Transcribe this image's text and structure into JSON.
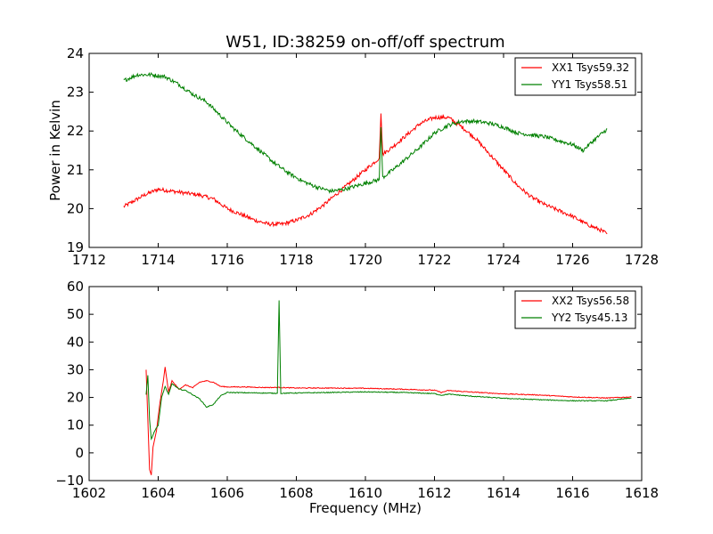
{
  "chart_data": [
    {
      "type": "line",
      "title": "W51, ID:38259 on-off/off spectrum",
      "xlabel": "",
      "ylabel": "Power in Kelvin",
      "xlim": [
        1712,
        1728
      ],
      "ylim": [
        19,
        24
      ],
      "xticks": [
        "1712",
        "1714",
        "1716",
        "1718",
        "1720",
        "1722",
        "1724",
        "1726",
        "1728"
      ],
      "yticks": [
        "19",
        "20",
        "21",
        "22",
        "23",
        "24"
      ],
      "legend_position": "top-right",
      "grid": false,
      "series": [
        {
          "name": "XX1 Tsys59.32",
          "color": "#ff0000",
          "x": [
            1713.0,
            1713.3,
            1713.6,
            1714.0,
            1714.4,
            1714.8,
            1715.2,
            1715.6,
            1716.0,
            1716.4,
            1716.8,
            1717.2,
            1717.6,
            1718.0,
            1718.4,
            1718.8,
            1719.2,
            1719.6,
            1720.0,
            1720.4,
            1720.45,
            1720.5,
            1720.8,
            1721.2,
            1721.6,
            1722.0,
            1722.4,
            1722.8,
            1723.2,
            1723.6,
            1724.0,
            1724.4,
            1724.8,
            1725.2,
            1725.6,
            1726.0,
            1726.4,
            1726.8,
            1727.0
          ],
          "y": [
            20.05,
            20.2,
            20.35,
            20.5,
            20.45,
            20.4,
            20.35,
            20.25,
            20.0,
            19.85,
            19.7,
            19.6,
            19.6,
            19.7,
            19.85,
            20.1,
            20.4,
            20.7,
            21.0,
            21.3,
            22.45,
            21.4,
            21.6,
            21.9,
            22.2,
            22.35,
            22.35,
            22.1,
            21.8,
            21.4,
            21.0,
            20.6,
            20.3,
            20.1,
            19.95,
            19.8,
            19.6,
            19.45,
            19.35
          ]
        },
        {
          "name": "YY1 Tsys58.51",
          "color": "#008000",
          "x": [
            1713.0,
            1713.4,
            1713.8,
            1714.2,
            1714.6,
            1715.0,
            1715.4,
            1715.8,
            1716.2,
            1716.6,
            1717.0,
            1717.4,
            1717.8,
            1718.2,
            1718.6,
            1719.0,
            1719.4,
            1719.8,
            1720.2,
            1720.4,
            1720.45,
            1720.5,
            1720.8,
            1721.2,
            1721.6,
            1722.0,
            1722.4,
            1722.8,
            1723.2,
            1723.6,
            1724.0,
            1724.4,
            1724.8,
            1725.2,
            1725.6,
            1726.0,
            1726.3,
            1726.6,
            1727.0
          ],
          "y": [
            23.3,
            23.45,
            23.45,
            23.4,
            23.2,
            22.95,
            22.75,
            22.4,
            22.05,
            21.75,
            21.45,
            21.15,
            20.9,
            20.7,
            20.55,
            20.45,
            20.5,
            20.6,
            20.7,
            20.75,
            22.1,
            20.8,
            21.0,
            21.3,
            21.6,
            21.95,
            22.15,
            22.25,
            22.25,
            22.2,
            22.1,
            21.95,
            21.9,
            21.85,
            21.75,
            21.65,
            21.5,
            21.75,
            22.05
          ]
        }
      ]
    },
    {
      "type": "line",
      "title": "",
      "xlabel": "Frequency (MHz)",
      "ylabel": "",
      "xlim": [
        1602,
        1618
      ],
      "ylim": [
        -10,
        60
      ],
      "xticks": [
        "1602",
        "1604",
        "1606",
        "1608",
        "1610",
        "1612",
        "1614",
        "1616",
        "1618"
      ],
      "yticks": [
        "−10",
        "0",
        "10",
        "20",
        "30",
        "40",
        "50",
        "60"
      ],
      "legend_position": "top-right",
      "grid": false,
      "series": [
        {
          "name": "XX2 Tsys56.58",
          "color": "#ff0000",
          "x": [
            1603.65,
            1603.7,
            1603.75,
            1603.8,
            1603.85,
            1603.95,
            1604.05,
            1604.15,
            1604.2,
            1604.3,
            1604.4,
            1604.6,
            1604.8,
            1605.0,
            1605.2,
            1605.4,
            1605.6,
            1605.8,
            1606.0,
            1606.5,
            1607.0,
            1607.5,
            1608.0,
            1609.0,
            1610.0,
            1611.0,
            1612.0,
            1612.2,
            1612.4,
            1613.0,
            1614.0,
            1615.0,
            1616.0,
            1617.0,
            1617.7
          ],
          "y": [
            30.0,
            12.0,
            -6.0,
            -8.0,
            2.0,
            8.0,
            18.0,
            26.0,
            31.0,
            22.0,
            26.0,
            23.0,
            24.5,
            23.5,
            25.5,
            26.0,
            25.5,
            24.0,
            23.8,
            23.8,
            23.6,
            23.6,
            23.4,
            23.4,
            23.3,
            23.0,
            22.6,
            21.8,
            22.5,
            22.0,
            21.3,
            20.9,
            20.2,
            19.8,
            20.2
          ]
        },
        {
          "name": "YY2 Tsys45.13",
          "color": "#008000",
          "x": [
            1603.65,
            1603.7,
            1603.75,
            1603.8,
            1603.9,
            1604.0,
            1604.1,
            1604.2,
            1604.3,
            1604.4,
            1604.6,
            1604.8,
            1605.0,
            1605.2,
            1605.4,
            1605.6,
            1605.8,
            1606.0,
            1606.5,
            1607.0,
            1607.45,
            1607.5,
            1607.55,
            1608.0,
            1609.0,
            1610.0,
            1611.0,
            1612.0,
            1612.2,
            1612.4,
            1613.0,
            1614.0,
            1615.0,
            1616.0,
            1617.0,
            1617.7
          ],
          "y": [
            21.0,
            28.0,
            12.0,
            5.0,
            8.0,
            10.0,
            20.0,
            24.0,
            21.0,
            25.0,
            23.0,
            22.5,
            21.0,
            19.5,
            16.5,
            17.5,
            20.5,
            21.8,
            21.7,
            21.6,
            21.5,
            55.0,
            21.5,
            21.6,
            21.8,
            22.0,
            21.8,
            21.4,
            20.8,
            21.2,
            20.5,
            19.7,
            19.2,
            18.8,
            18.8,
            19.8
          ]
        }
      ]
    }
  ]
}
